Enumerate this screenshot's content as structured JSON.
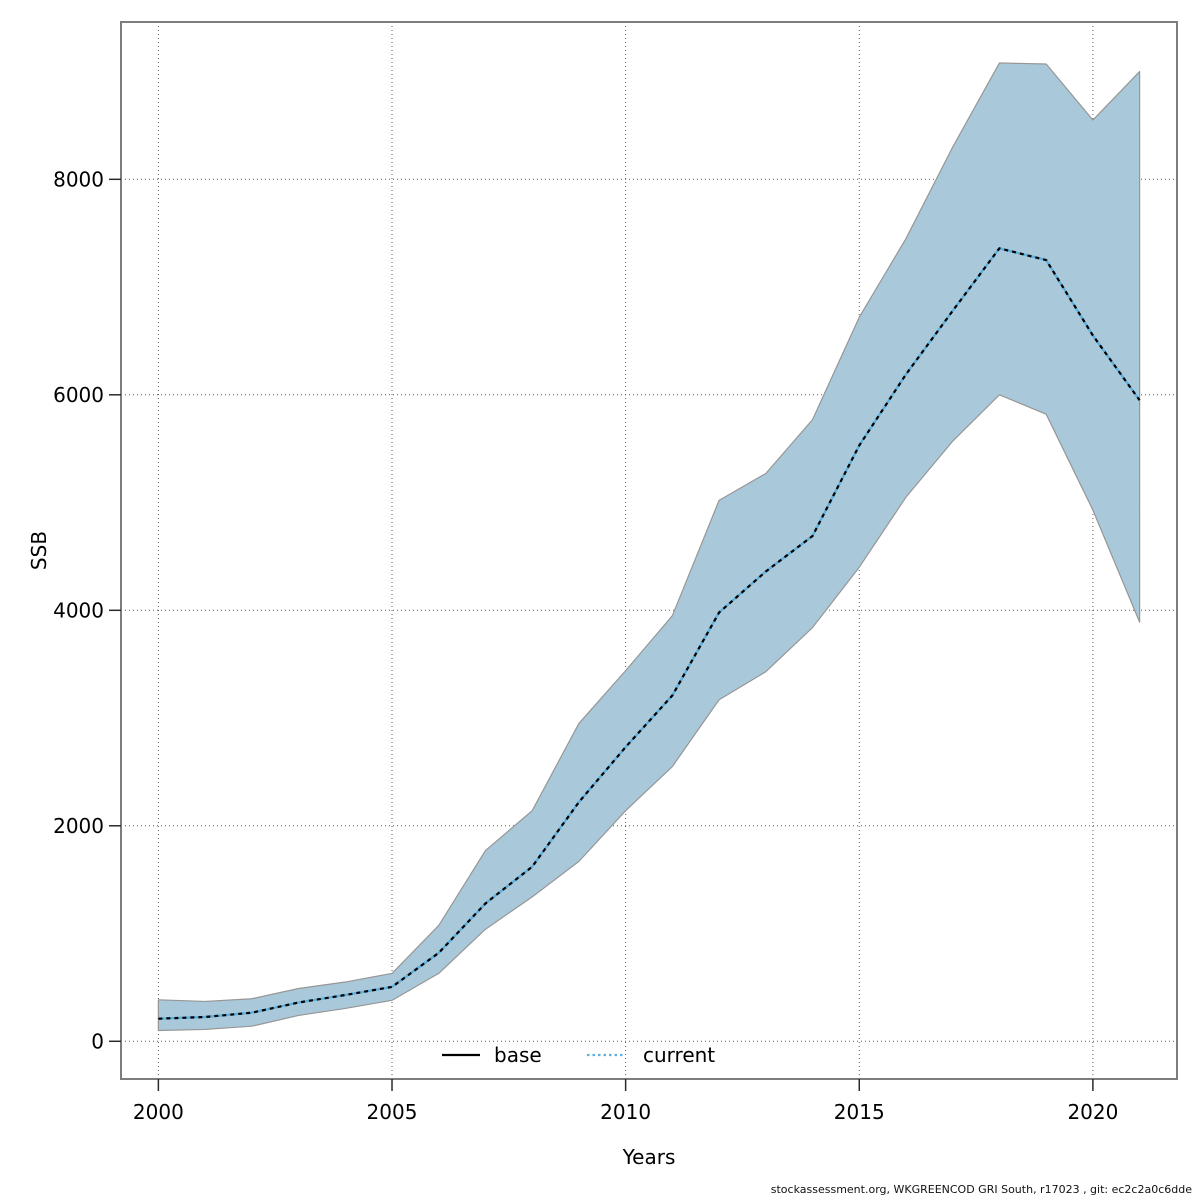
{
  "footer": {
    "credit": "stockassessment.org, WKGREENCOD GRI South, r17023 , git: ec2c2a0c6dde"
  },
  "chart_data": {
    "type": "line",
    "title": "",
    "xlabel": "Years",
    "ylabel": "SSB",
    "x": [
      2000,
      2001,
      2002,
      2003,
      2004,
      2005,
      2006,
      2007,
      2008,
      2009,
      2010,
      2011,
      2012,
      2013,
      2014,
      2015,
      2016,
      2017,
      2018,
      2019,
      2020,
      2021
    ],
    "series": [
      {
        "name": "base",
        "line_style": "solid",
        "color": "#000000",
        "values": [
          210,
          225,
          265,
          360,
          430,
          505,
          820,
          1280,
          1620,
          2220,
          2730,
          3210,
          3980,
          4360,
          4690,
          5530,
          6190,
          6780,
          7360,
          7250,
          6550,
          5950
        ]
      },
      {
        "name": "current",
        "line_style": "dotted",
        "color": "#5fb0dc",
        "values": [
          210,
          225,
          265,
          360,
          430,
          505,
          820,
          1280,
          1620,
          2220,
          2730,
          3210,
          3980,
          4360,
          4690,
          5530,
          6190,
          6780,
          7360,
          7250,
          6550,
          5950
        ]
      }
    ],
    "ribbon": {
      "name": "confidence-interval",
      "fill": "#a9c9db",
      "edge_color": "#969696",
      "low": [
        100,
        110,
        140,
        240,
        305,
        380,
        630,
        1040,
        1340,
        1670,
        2140,
        2550,
        3170,
        3430,
        3840,
        4400,
        5050,
        5570,
        6000,
        5820,
        4930,
        3890
      ],
      "high": [
        385,
        370,
        395,
        490,
        550,
        630,
        1075,
        1770,
        2140,
        2950,
        3440,
        3950,
        5020,
        5270,
        5770,
        6720,
        7450,
        8300,
        9080,
        9070,
        8550,
        9000
      ]
    },
    "axes": {
      "xticks": [
        2000,
        2005,
        2010,
        2015,
        2020
      ],
      "yticks": [
        0,
        2000,
        4000,
        6000,
        8000
      ],
      "xlim": [
        1999.2,
        2021.8
      ],
      "ylim": [
        -350,
        9460
      ],
      "grid": "dotted",
      "grid_color": "#5a5a5a",
      "box_color": "#7d7d7d",
      "tick_color": "#2b2b2b",
      "text_color": "#000000"
    },
    "legend": {
      "position": "bottom-center",
      "items": [
        {
          "label": "base",
          "series": "base"
        },
        {
          "label": "current",
          "series": "current"
        }
      ]
    }
  }
}
